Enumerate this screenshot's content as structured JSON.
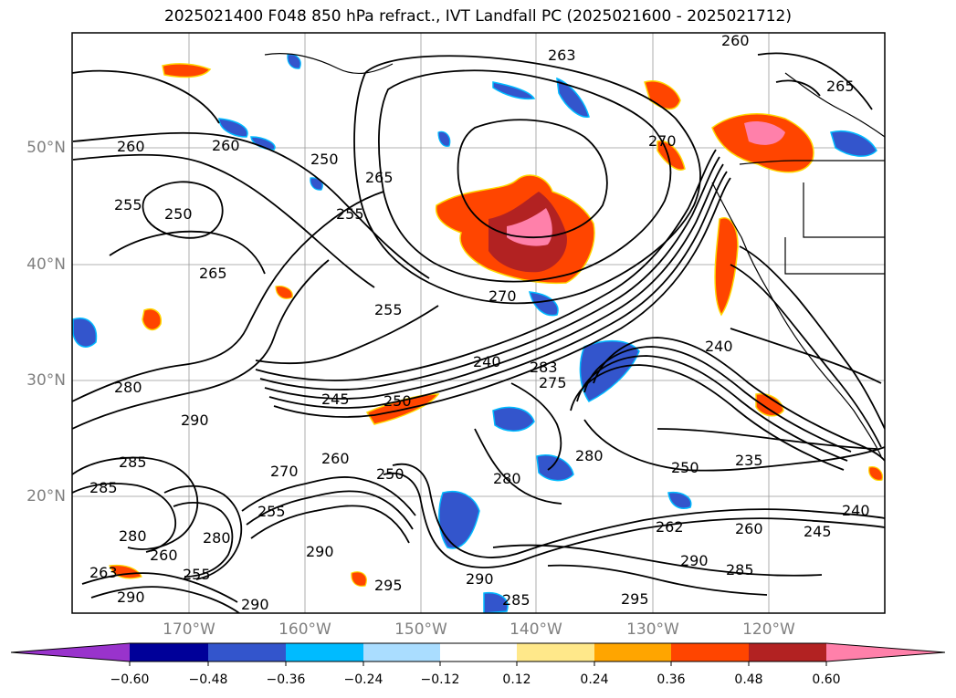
{
  "title": "2025021400 F048 850 hPa refract., IVT Landfall PC (2025021600 - 2025021712)",
  "lat_labels": [
    "50°N",
    "40°N",
    "30°N",
    "20°N"
  ],
  "lon_labels": [
    "170°W",
    "160°W",
    "150°W",
    "140°W",
    "130°W",
    "120°W"
  ],
  "colorbar": {
    "colors": [
      "#9933cc",
      "#000099",
      "#3355cc",
      "#00bbff",
      "#aaddff",
      "#ffffff",
      "#ffe88a",
      "#ffa500",
      "#ff4500",
      "#b22222",
      "#ff80aa"
    ],
    "tick_labels": [
      "−0.60",
      "−0.48",
      "−0.36",
      "−0.24",
      "−0.12",
      "0.12",
      "0.24",
      "0.36",
      "0.48",
      "0.60"
    ]
  },
  "contour_labels": [
    "260",
    "255",
    "250",
    "260",
    "250",
    "255",
    "265",
    "265",
    "270",
    "263",
    "260",
    "265",
    "270",
    "255",
    "240",
    "283",
    "245",
    "250",
    "275",
    "280",
    "290",
    "285",
    "280",
    "260",
    "270",
    "255",
    "280",
    "250",
    "255",
    "260",
    "290",
    "280",
    "295",
    "290",
    "285",
    "290",
    "263",
    "290",
    "280",
    "285",
    "235",
    "250",
    "240",
    "245",
    "260",
    "262",
    "290",
    "285",
    "240",
    "295"
  ]
}
